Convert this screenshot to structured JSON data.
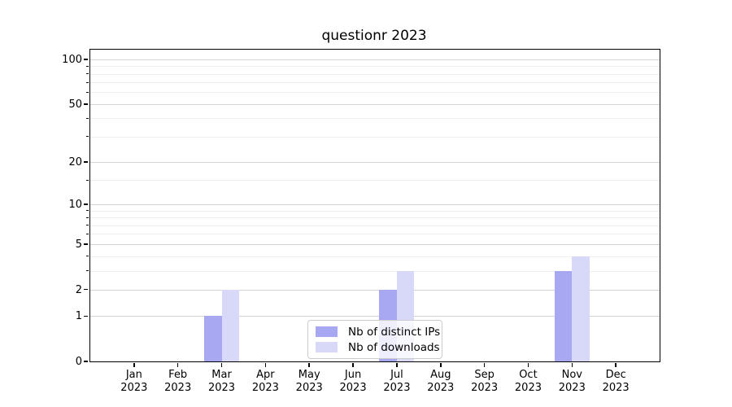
{
  "chart_data": {
    "type": "bar",
    "title": "questionr 2023",
    "categories": [
      "Jan 2023",
      "Feb 2023",
      "Mar 2023",
      "Apr 2023",
      "May 2023",
      "Jun 2023",
      "Jul 2023",
      "Aug 2023",
      "Sep 2023",
      "Oct 2023",
      "Nov 2023",
      "Dec 2023"
    ],
    "series": [
      {
        "name": "Nb of distinct IPs",
        "color": "#a8a8f2",
        "values": [
          0,
          0,
          1,
          0,
          0,
          0,
          2,
          0,
          0,
          0,
          3,
          0
        ]
      },
      {
        "name": "Nb of downloads",
        "color": "#d8d8f8",
        "values": [
          0,
          0,
          2,
          0,
          0,
          0,
          3,
          0,
          0,
          0,
          4,
          0
        ]
      }
    ],
    "xlabel": "",
    "ylabel": "",
    "y_axis": {
      "scale": "log1p",
      "max": 116,
      "ticks": [
        {
          "value": 0,
          "label": "0"
        },
        {
          "value": 1,
          "label": "1"
        },
        {
          "value": 2,
          "label": "2"
        },
        {
          "value": 5,
          "label": "5"
        },
        {
          "value": 10,
          "label": "10"
        },
        {
          "value": 20,
          "label": "20"
        },
        {
          "value": 50,
          "label": "50"
        },
        {
          "value": 100,
          "label": "100"
        }
      ],
      "minor_ticks": [
        3,
        4,
        6,
        7,
        8,
        9,
        15,
        30,
        40,
        60,
        70,
        80,
        90
      ]
    },
    "grid": true,
    "legend_position": "lower center",
    "colors": {
      "grid_major": "#d4d4d4",
      "grid_minor": "#efefef",
      "spine": "#000000"
    }
  }
}
